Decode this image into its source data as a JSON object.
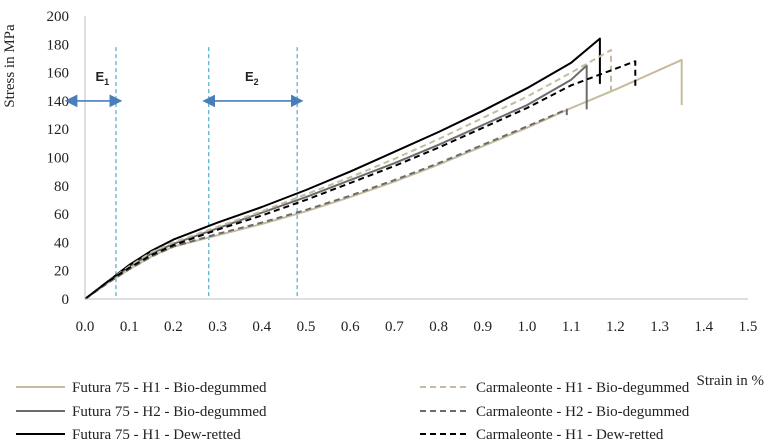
{
  "chart_data": {
    "type": "line",
    "title": "",
    "xlabel": "Strain in %",
    "ylabel": "Stress in MPa",
    "xlim": [
      0.0,
      1.5
    ],
    "ylim": [
      0,
      200
    ],
    "x_ticks": [
      "0.0",
      "0.1",
      "0.2",
      "0.3",
      "0.4",
      "0.5",
      "0.6",
      "0.7",
      "0.8",
      "0.9",
      "1.0",
      "1.1",
      "1.2",
      "1.3",
      "1.4",
      "1.5"
    ],
    "y_ticks": [
      "0",
      "20",
      "40",
      "60",
      "80",
      "100",
      "120",
      "140",
      "160",
      "180",
      "200"
    ],
    "grid": false,
    "legend_position": "bottom",
    "series": [
      {
        "name": "Futura 75 - H1 - Bio-degummed",
        "color": "#c5bc9e",
        "dash": "solid",
        "points": [
          [
            0,
            0
          ],
          [
            0.05,
            11
          ],
          [
            0.1,
            21
          ],
          [
            0.15,
            30
          ],
          [
            0.2,
            37
          ],
          [
            0.3,
            45
          ],
          [
            0.4,
            53
          ],
          [
            0.5,
            62
          ],
          [
            0.6,
            72
          ],
          [
            0.7,
            83
          ],
          [
            0.8,
            95
          ],
          [
            0.9,
            108
          ],
          [
            1.0,
            121
          ],
          [
            1.1,
            135
          ],
          [
            1.2,
            148
          ],
          [
            1.3,
            162
          ],
          [
            1.35,
            169
          ],
          [
            1.35,
            137
          ]
        ]
      },
      {
        "name": "Futura 75 - H2 - Bio-degummed",
        "color": "#6b6b6b",
        "dash": "solid",
        "points": [
          [
            0,
            0
          ],
          [
            0.05,
            12
          ],
          [
            0.1,
            23
          ],
          [
            0.15,
            32
          ],
          [
            0.2,
            39
          ],
          [
            0.3,
            50
          ],
          [
            0.4,
            61
          ],
          [
            0.5,
            72
          ],
          [
            0.6,
            84
          ],
          [
            0.7,
            96
          ],
          [
            0.8,
            109
          ],
          [
            0.9,
            123
          ],
          [
            1.0,
            137
          ],
          [
            1.1,
            155
          ],
          [
            1.135,
            165
          ],
          [
            1.135,
            134
          ]
        ]
      },
      {
        "name": "Futura 75 - H1 - Dew-retted",
        "color": "#000000",
        "dash": "solid",
        "points": [
          [
            0,
            0
          ],
          [
            0.05,
            12
          ],
          [
            0.1,
            24
          ],
          [
            0.15,
            34
          ],
          [
            0.2,
            42
          ],
          [
            0.3,
            54
          ],
          [
            0.4,
            65
          ],
          [
            0.5,
            77
          ],
          [
            0.6,
            90
          ],
          [
            0.7,
            104
          ],
          [
            0.8,
            118
          ],
          [
            0.9,
            133
          ],
          [
            1.0,
            149
          ],
          [
            1.1,
            167
          ],
          [
            1.165,
            184
          ],
          [
            1.165,
            152
          ]
        ]
      },
      {
        "name": "Carmaleonte - H1 - Bio-degummed",
        "color": "#c5bc9e",
        "dash": "dashed",
        "points": [
          [
            0,
            0
          ],
          [
            0.05,
            12
          ],
          [
            0.1,
            23
          ],
          [
            0.15,
            33
          ],
          [
            0.2,
            40
          ],
          [
            0.3,
            51
          ],
          [
            0.4,
            62
          ],
          [
            0.5,
            74
          ],
          [
            0.6,
            86
          ],
          [
            0.7,
            99
          ],
          [
            0.8,
            113
          ],
          [
            0.9,
            128
          ],
          [
            1.0,
            143
          ],
          [
            1.1,
            160
          ],
          [
            1.19,
            176
          ],
          [
            1.19,
            146
          ]
        ]
      },
      {
        "name": "Carmaleonte - H2 - Bio-degummed",
        "color": "#6b6b6b",
        "dash": "dashed",
        "points": [
          [
            0,
            0
          ],
          [
            0.05,
            11
          ],
          [
            0.1,
            21
          ],
          [
            0.15,
            30
          ],
          [
            0.2,
            37
          ],
          [
            0.3,
            46
          ],
          [
            0.4,
            54
          ],
          [
            0.5,
            63
          ],
          [
            0.6,
            73
          ],
          [
            0.7,
            84
          ],
          [
            0.8,
            96
          ],
          [
            0.9,
            109
          ],
          [
            1.0,
            122
          ],
          [
            1.09,
            134
          ],
          [
            1.09,
            127
          ]
        ]
      },
      {
        "name": "Carmaleonte - H1 - Dew-retted",
        "color": "#000000",
        "dash": "dashed",
        "points": [
          [
            0,
            0
          ],
          [
            0.05,
            12
          ],
          [
            0.1,
            22
          ],
          [
            0.15,
            31
          ],
          [
            0.2,
            38
          ],
          [
            0.3,
            49
          ],
          [
            0.4,
            59
          ],
          [
            0.5,
            70
          ],
          [
            0.6,
            82
          ],
          [
            0.7,
            94
          ],
          [
            0.8,
            107
          ],
          [
            0.9,
            121
          ],
          [
            1.0,
            135
          ],
          [
            1.1,
            151
          ],
          [
            1.245,
            168
          ],
          [
            1.245,
            150
          ]
        ]
      }
    ],
    "reference_lines": [
      {
        "x": 0.07,
        "color": "#4bacc6"
      },
      {
        "x": 0.28,
        "color": "#4bacc6"
      },
      {
        "x": 0.48,
        "color": "#4bacc6"
      }
    ],
    "ranges": [
      {
        "main": "E",
        "sub": "1",
        "x_from": 0.0,
        "x_to": 0.07,
        "y": 140,
        "color": "#4a7ebb"
      },
      {
        "main": "E",
        "sub": "2",
        "x_from": 0.28,
        "x_to": 0.48,
        "y": 140,
        "color": "#4a7ebb"
      }
    ]
  }
}
